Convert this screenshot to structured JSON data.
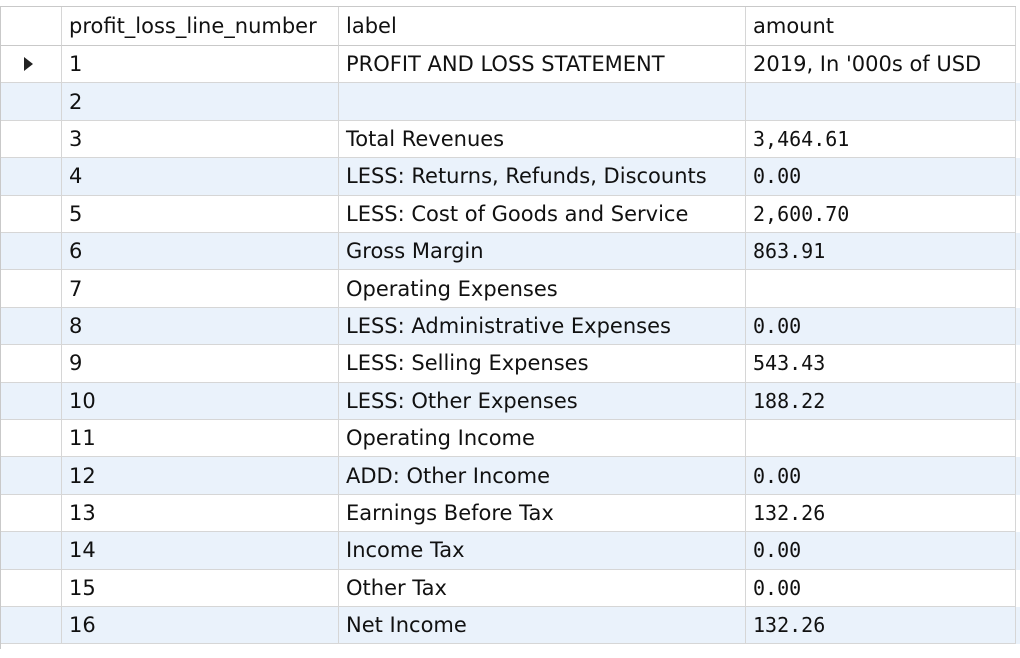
{
  "result_grid": {
    "columns": [
      {
        "label": "profit_loss_line_number"
      },
      {
        "label": "label"
      },
      {
        "label": "amount"
      }
    ],
    "rows": [
      {
        "line": "1",
        "label": "PROFIT AND LOSS STATEMENT",
        "amount": "2019, In '000s of USD"
      },
      {
        "line": "2",
        "label": "",
        "amount": ""
      },
      {
        "line": "3",
        "label": "Total Revenues",
        "amount": "3,464.61"
      },
      {
        "line": "4",
        "label": "LESS: Returns, Refunds, Discounts",
        "amount": "0.00"
      },
      {
        "line": "5",
        "label": "LESS: Cost of Goods and Service",
        "amount": "2,600.70"
      },
      {
        "line": "6",
        "label": "Gross Margin",
        "amount": "863.91"
      },
      {
        "line": "7",
        "label": "Operating Expenses",
        "amount": ""
      },
      {
        "line": "8",
        "label": "LESS: Administrative Expenses",
        "amount": "0.00"
      },
      {
        "line": "9",
        "label": "LESS: Selling Expenses",
        "amount": "543.43"
      },
      {
        "line": "10",
        "label": "LESS: Other Expenses",
        "amount": "188.22"
      },
      {
        "line": "11",
        "label": "Operating Income",
        "amount": ""
      },
      {
        "line": "12",
        "label": "ADD: Other Income",
        "amount": "0.00"
      },
      {
        "line": "13",
        "label": "Earnings Before Tax",
        "amount": "132.26"
      },
      {
        "line": "14",
        "label": "Income Tax",
        "amount": "0.00"
      },
      {
        "line": "15",
        "label": "Other Tax",
        "amount": "0.00"
      },
      {
        "line": "16",
        "label": "Net Income",
        "amount": "132.26"
      }
    ],
    "selected_row_icon": "current-row-arrow-icon",
    "colors": {
      "alternate_row": "#eaf2fb",
      "grid_line": "#d6d6d6"
    }
  }
}
